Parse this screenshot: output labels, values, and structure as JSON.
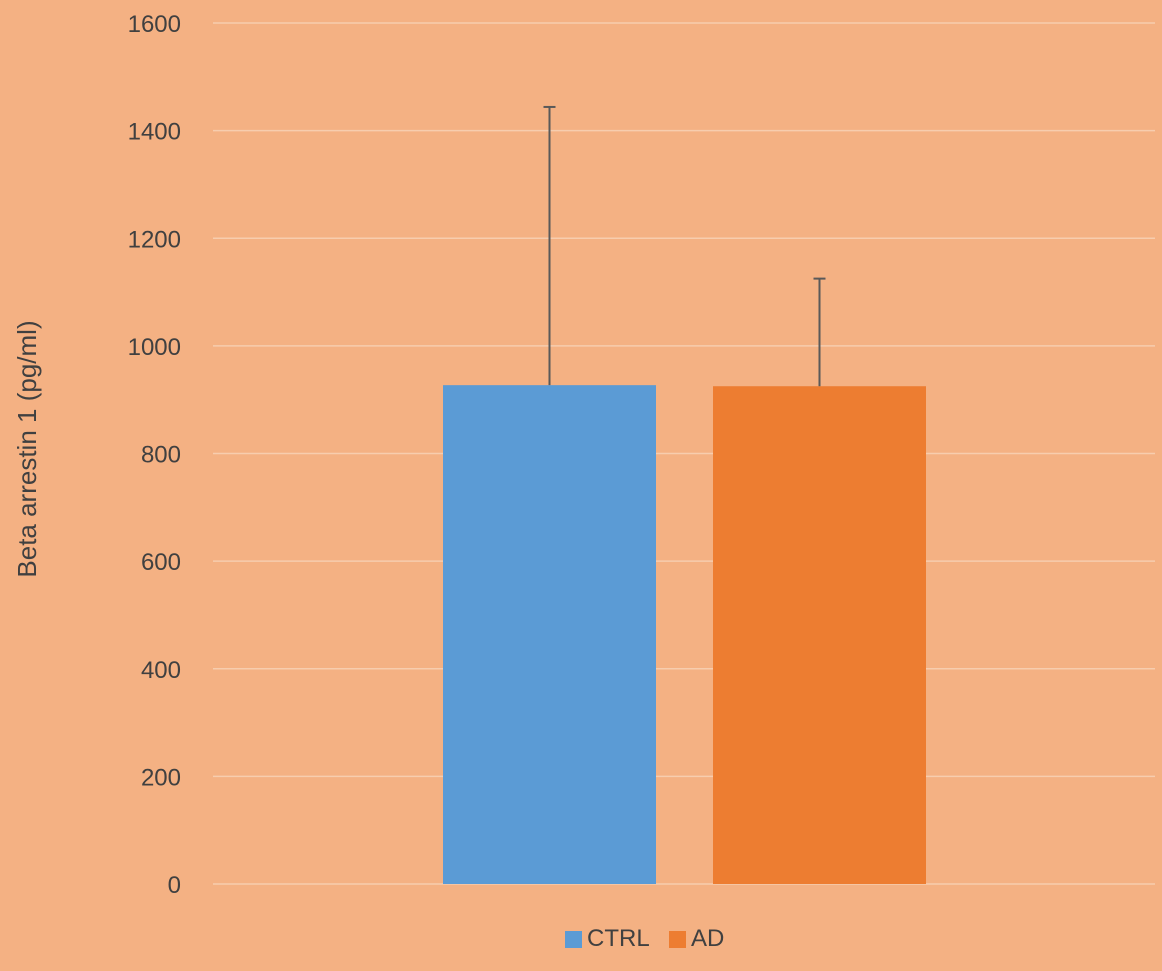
{
  "chart_data": {
    "type": "bar",
    "title": "",
    "xlabel": "",
    "ylabel": "Beta arrestin 1 (pg/ml)",
    "ylim": [
      0,
      1600
    ],
    "yticks": [
      0,
      200,
      400,
      600,
      800,
      1000,
      1200,
      1400,
      1600
    ],
    "grid": true,
    "legend_position": "bottom",
    "series": [
      {
        "name": "CTRL",
        "value": 927,
        "error": 517,
        "color": "#5B9BD5"
      },
      {
        "name": "AD",
        "value": 925,
        "error": 200,
        "color": "#ED7D31"
      }
    ]
  }
}
